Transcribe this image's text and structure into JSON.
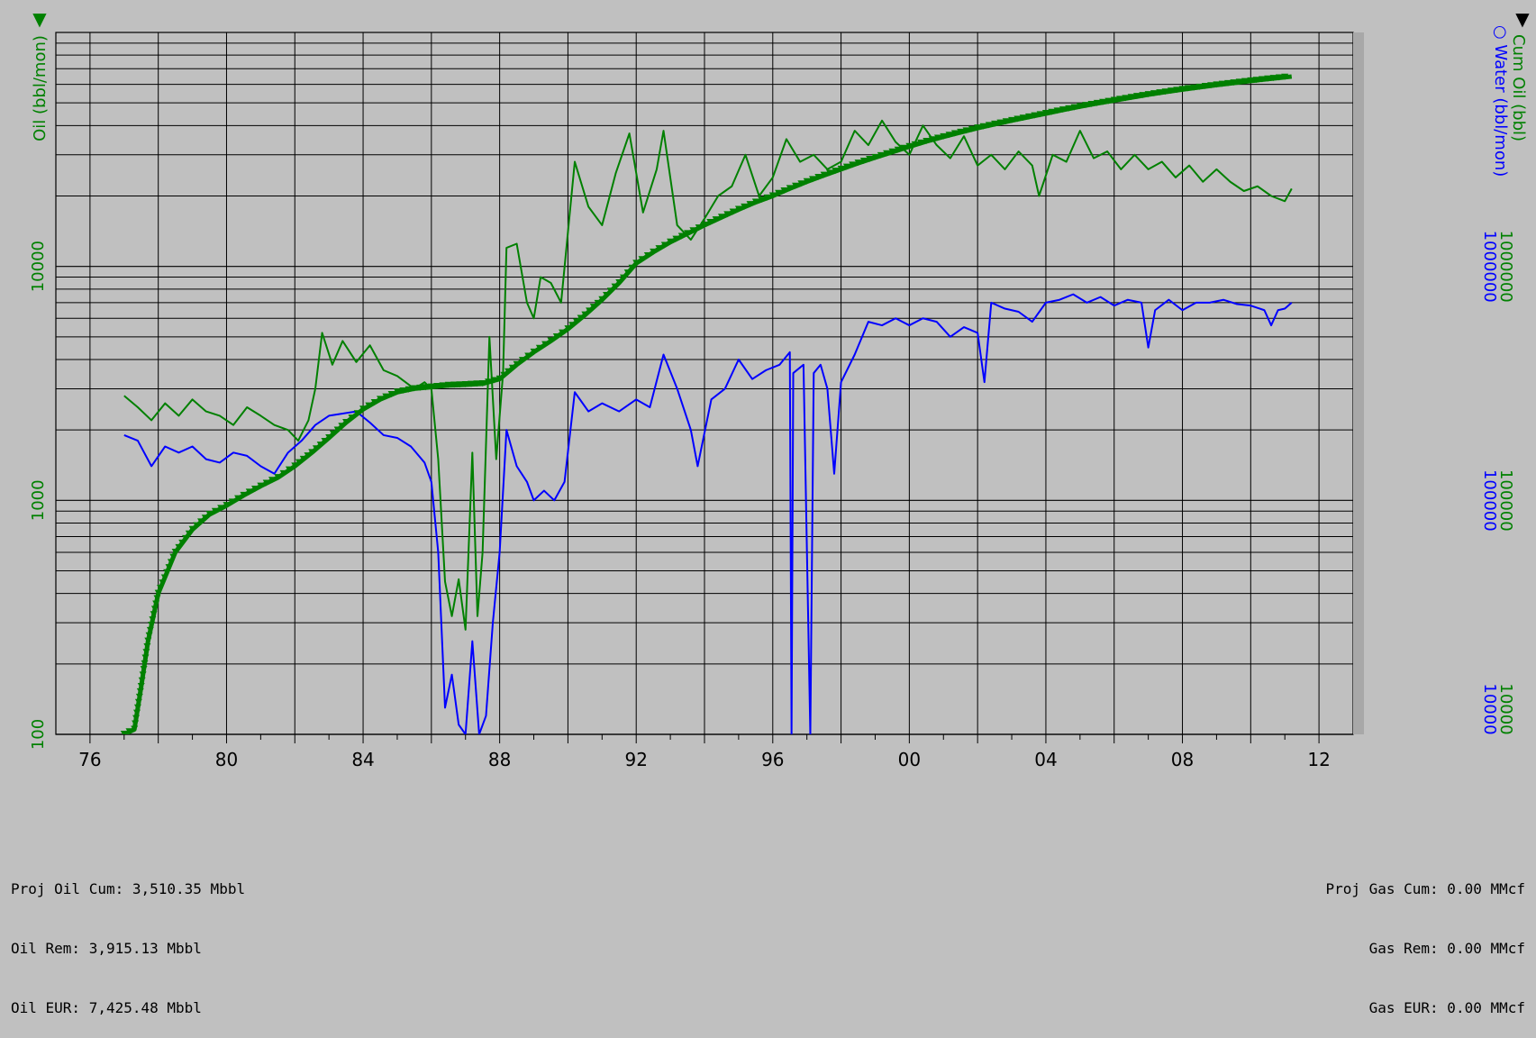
{
  "chart_data": {
    "type": "line",
    "y_scale": "log",
    "y_left": {
      "label": "Oil (bbl/mon)",
      "ticks": [
        "100",
        "1000",
        "10000"
      ],
      "range": [
        100,
        100000
      ],
      "color": "#008000"
    },
    "y_right": {
      "labels": [
        {
          "text": "Cum Oil (bbl)",
          "color": "#008000",
          "marker": "▼"
        },
        {
          "text": "Water (bbl/mon)",
          "color": "#0000ff",
          "marker": "○"
        }
      ],
      "ticks": [
        "10000",
        "100000",
        "1000000"
      ],
      "range": [
        10000,
        10000000
      ]
    },
    "x_axis": {
      "range_years": [
        1975,
        2013
      ],
      "tick_labels": [
        "76",
        "80",
        "84",
        "88",
        "92",
        "96",
        "00",
        "04",
        "08",
        "12"
      ],
      "tick_years": [
        1976,
        1980,
        1984,
        1988,
        1992,
        1996,
        2000,
        2004,
        2008,
        2012
      ]
    },
    "grid": true,
    "corner_markers": {
      "left": "▼",
      "right": "▼"
    },
    "series": [
      {
        "name": "Oil (bbl/mon)",
        "axis": "left",
        "color": "#008000",
        "points": [
          [
            1977.0,
            2800
          ],
          [
            1977.4,
            2500
          ],
          [
            1977.8,
            2200
          ],
          [
            1978.2,
            2600
          ],
          [
            1978.6,
            2300
          ],
          [
            1979.0,
            2700
          ],
          [
            1979.4,
            2400
          ],
          [
            1979.8,
            2300
          ],
          [
            1980.2,
            2100
          ],
          [
            1980.6,
            2500
          ],
          [
            1981.0,
            2300
          ],
          [
            1981.4,
            2100
          ],
          [
            1981.8,
            2000
          ],
          [
            1982.1,
            1800
          ],
          [
            1982.4,
            2200
          ],
          [
            1982.6,
            3000
          ],
          [
            1982.8,
            5200
          ],
          [
            1983.1,
            3800
          ],
          [
            1983.4,
            4800
          ],
          [
            1983.8,
            3900
          ],
          [
            1984.2,
            4600
          ],
          [
            1984.6,
            3600
          ],
          [
            1985.0,
            3400
          ],
          [
            1985.5,
            3000
          ],
          [
            1985.8,
            3200
          ],
          [
            1986.0,
            3000
          ],
          [
            1986.2,
            1500
          ],
          [
            1986.4,
            450
          ],
          [
            1986.6,
            320
          ],
          [
            1986.8,
            460
          ],
          [
            1987.0,
            280
          ],
          [
            1987.2,
            1600
          ],
          [
            1987.35,
            320
          ],
          [
            1987.5,
            600
          ],
          [
            1987.7,
            5000
          ],
          [
            1987.9,
            1500
          ],
          [
            1988.1,
            3500
          ],
          [
            1988.2,
            12000
          ],
          [
            1988.5,
            12500
          ],
          [
            1988.8,
            7000
          ],
          [
            1989.0,
            6000
          ],
          [
            1989.2,
            9000
          ],
          [
            1989.5,
            8500
          ],
          [
            1989.8,
            7000
          ],
          [
            1990.2,
            28000
          ],
          [
            1990.6,
            18000
          ],
          [
            1991.0,
            15000
          ],
          [
            1991.4,
            25000
          ],
          [
            1991.8,
            37000
          ],
          [
            1992.2,
            17000
          ],
          [
            1992.6,
            26000
          ],
          [
            1992.8,
            38000
          ],
          [
            1993.2,
            15000
          ],
          [
            1993.6,
            13000
          ],
          [
            1994.0,
            16000
          ],
          [
            1994.4,
            20000
          ],
          [
            1994.8,
            22000
          ],
          [
            1995.2,
            30000
          ],
          [
            1995.6,
            20000
          ],
          [
            1996.0,
            24000
          ],
          [
            1996.4,
            35000
          ],
          [
            1996.8,
            28000
          ],
          [
            1997.2,
            30000
          ],
          [
            1997.6,
            26000
          ],
          [
            1998.0,
            28000
          ],
          [
            1998.4,
            38000
          ],
          [
            1998.8,
            33000
          ],
          [
            1999.2,
            42000
          ],
          [
            1999.6,
            34000
          ],
          [
            2000.0,
            30000
          ],
          [
            2000.4,
            40000
          ],
          [
            2000.8,
            33000
          ],
          [
            2001.2,
            29000
          ],
          [
            2001.6,
            36000
          ],
          [
            2002.0,
            27000
          ],
          [
            2002.4,
            30000
          ],
          [
            2002.8,
            26000
          ],
          [
            2003.2,
            31000
          ],
          [
            2003.6,
            27000
          ],
          [
            2003.8,
            20000
          ],
          [
            2004.2,
            30000
          ],
          [
            2004.6,
            28000
          ],
          [
            2005.0,
            38000
          ],
          [
            2005.4,
            29000
          ],
          [
            2005.8,
            31000
          ],
          [
            2006.2,
            26000
          ],
          [
            2006.6,
            30000
          ],
          [
            2007.0,
            26000
          ],
          [
            2007.4,
            28000
          ],
          [
            2007.8,
            24000
          ],
          [
            2008.2,
            27000
          ],
          [
            2008.6,
            23000
          ],
          [
            2009.0,
            26000
          ],
          [
            2009.4,
            23000
          ],
          [
            2009.8,
            21000
          ],
          [
            2010.2,
            22000
          ],
          [
            2010.6,
            20000
          ],
          [
            2011.0,
            19000
          ],
          [
            2011.2,
            21500
          ]
        ]
      },
      {
        "name": "Water (bbl/mon)",
        "axis": "right",
        "color": "#0000ff",
        "points": [
          [
            1977.0,
            190000
          ],
          [
            1977.4,
            180000
          ],
          [
            1977.8,
            140000
          ],
          [
            1978.2,
            170000
          ],
          [
            1978.6,
            160000
          ],
          [
            1979.0,
            170000
          ],
          [
            1979.4,
            150000
          ],
          [
            1979.8,
            145000
          ],
          [
            1980.2,
            160000
          ],
          [
            1980.6,
            155000
          ],
          [
            1981.0,
            140000
          ],
          [
            1981.4,
            130000
          ],
          [
            1981.8,
            160000
          ],
          [
            1982.2,
            180000
          ],
          [
            1982.6,
            210000
          ],
          [
            1983.0,
            230000
          ],
          [
            1983.4,
            235000
          ],
          [
            1983.8,
            240000
          ],
          [
            1984.2,
            215000
          ],
          [
            1984.6,
            190000
          ],
          [
            1985.0,
            185000
          ],
          [
            1985.4,
            170000
          ],
          [
            1985.8,
            145000
          ],
          [
            1986.0,
            120000
          ],
          [
            1986.2,
            60000
          ],
          [
            1986.4,
            13000
          ],
          [
            1986.6,
            18000
          ],
          [
            1986.8,
            11000
          ],
          [
            1987.0,
            10000
          ],
          [
            1987.2,
            25000
          ],
          [
            1987.4,
            10000
          ],
          [
            1987.6,
            12000
          ],
          [
            1987.8,
            30000
          ],
          [
            1988.0,
            60000
          ],
          [
            1988.2,
            200000
          ],
          [
            1988.5,
            140000
          ],
          [
            1988.8,
            120000
          ],
          [
            1989.0,
            100000
          ],
          [
            1989.3,
            110000
          ],
          [
            1989.6,
            100000
          ],
          [
            1989.9,
            120000
          ],
          [
            1990.2,
            290000
          ],
          [
            1990.6,
            240000
          ],
          [
            1991.0,
            260000
          ],
          [
            1991.5,
            240000
          ],
          [
            1992.0,
            270000
          ],
          [
            1992.4,
            250000
          ],
          [
            1992.8,
            420000
          ],
          [
            1993.2,
            300000
          ],
          [
            1993.6,
            200000
          ],
          [
            1993.8,
            140000
          ],
          [
            1994.2,
            270000
          ],
          [
            1994.6,
            300000
          ],
          [
            1995.0,
            400000
          ],
          [
            1995.4,
            330000
          ],
          [
            1995.8,
            360000
          ],
          [
            1996.2,
            380000
          ],
          [
            1996.5,
            430000
          ],
          [
            1996.55,
            10000
          ],
          [
            1996.6,
            350000
          ],
          [
            1996.9,
            380000
          ],
          [
            1997.1,
            10000
          ],
          [
            1997.2,
            350000
          ],
          [
            1997.4,
            380000
          ],
          [
            1997.6,
            300000
          ],
          [
            1997.8,
            130000
          ],
          [
            1998.0,
            320000
          ],
          [
            1998.4,
            420000
          ],
          [
            1998.8,
            580000
          ],
          [
            1999.2,
            560000
          ],
          [
            1999.6,
            600000
          ],
          [
            2000.0,
            560000
          ],
          [
            2000.4,
            600000
          ],
          [
            2000.8,
            580000
          ],
          [
            2001.2,
            500000
          ],
          [
            2001.6,
            550000
          ],
          [
            2002.0,
            520000
          ],
          [
            2002.2,
            320000
          ],
          [
            2002.4,
            700000
          ],
          [
            2002.8,
            660000
          ],
          [
            2003.2,
            640000
          ],
          [
            2003.6,
            580000
          ],
          [
            2004.0,
            700000
          ],
          [
            2004.4,
            720000
          ],
          [
            2004.8,
            760000
          ],
          [
            2005.2,
            700000
          ],
          [
            2005.6,
            740000
          ],
          [
            2006.0,
            680000
          ],
          [
            2006.4,
            720000
          ],
          [
            2006.8,
            700000
          ],
          [
            2007.0,
            450000
          ],
          [
            2007.2,
            650000
          ],
          [
            2007.6,
            720000
          ],
          [
            2008.0,
            650000
          ],
          [
            2008.4,
            700000
          ],
          [
            2008.8,
            700000
          ],
          [
            2009.2,
            720000
          ],
          [
            2009.6,
            690000
          ],
          [
            2010.0,
            680000
          ],
          [
            2010.4,
            650000
          ],
          [
            2010.6,
            560000
          ],
          [
            2010.8,
            650000
          ],
          [
            2011.0,
            660000
          ],
          [
            2011.2,
            700000
          ]
        ]
      },
      {
        "name": "Cum Oil (bbl)",
        "axis": "right",
        "color": "#008000",
        "marker": "triangle-down",
        "points": [
          [
            1977.0,
            10000
          ],
          [
            1977.3,
            10500
          ],
          [
            1977.5,
            16000
          ],
          [
            1977.7,
            25000
          ],
          [
            1978.0,
            40000
          ],
          [
            1978.5,
            60000
          ],
          [
            1979.0,
            75000
          ],
          [
            1979.5,
            87000
          ],
          [
            1980.0,
            95000
          ],
          [
            1980.5,
            105000
          ],
          [
            1981.0,
            115000
          ],
          [
            1981.5,
            125000
          ],
          [
            1982.0,
            140000
          ],
          [
            1982.5,
            160000
          ],
          [
            1983.0,
            185000
          ],
          [
            1983.5,
            215000
          ],
          [
            1984.0,
            245000
          ],
          [
            1984.5,
            270000
          ],
          [
            1985.0,
            290000
          ],
          [
            1985.5,
            300000
          ],
          [
            1986.0,
            305000
          ],
          [
            1986.5,
            310000
          ],
          [
            1987.0,
            312000
          ],
          [
            1987.5,
            315000
          ],
          [
            1988.0,
            330000
          ],
          [
            1988.5,
            380000
          ],
          [
            1989.0,
            430000
          ],
          [
            1989.5,
            480000
          ],
          [
            1990.0,
            540000
          ],
          [
            1990.5,
            620000
          ],
          [
            1991.0,
            720000
          ],
          [
            1991.5,
            850000
          ],
          [
            1992.0,
            1030000
          ],
          [
            1992.5,
            1150000
          ],
          [
            1993.0,
            1270000
          ],
          [
            1993.5,
            1380000
          ],
          [
            1994.0,
            1500000
          ],
          [
            1994.5,
            1620000
          ],
          [
            1995.0,
            1750000
          ],
          [
            1995.5,
            1880000
          ],
          [
            1996.0,
            2000000
          ],
          [
            1996.5,
            2150000
          ],
          [
            1997.0,
            2300000
          ],
          [
            1997.5,
            2450000
          ],
          [
            1998.0,
            2600000
          ],
          [
            1998.5,
            2760000
          ],
          [
            1999.0,
            2920000
          ],
          [
            1999.5,
            3080000
          ],
          [
            2000.0,
            3250000
          ],
          [
            2000.5,
            3420000
          ],
          [
            2001.0,
            3580000
          ],
          [
            2001.5,
            3740000
          ],
          [
            2002.0,
            3900000
          ],
          [
            2002.5,
            4050000
          ],
          [
            2003.0,
            4200000
          ],
          [
            2003.5,
            4350000
          ],
          [
            2004.0,
            4500000
          ],
          [
            2004.5,
            4660000
          ],
          [
            2005.0,
            4820000
          ],
          [
            2005.5,
            4970000
          ],
          [
            2006.0,
            5120000
          ],
          [
            2006.5,
            5270000
          ],
          [
            2007.0,
            5420000
          ],
          [
            2007.5,
            5560000
          ],
          [
            2008.0,
            5700000
          ],
          [
            2008.5,
            5830000
          ],
          [
            2009.0,
            5960000
          ],
          [
            2009.5,
            6080000
          ],
          [
            2010.0,
            6200000
          ],
          [
            2010.5,
            6320000
          ],
          [
            2011.0,
            6430000
          ],
          [
            2011.2,
            6480000
          ]
        ]
      }
    ]
  },
  "stats_left": [
    "Proj Oil Cum: 3,510.35 Mbbl",
    "Oil Rem: 3,915.13 Mbbl",
    "Oil EUR: 7,425.48 Mbbl"
  ],
  "stats_right": [
    "Proj Gas Cum: 0.00 MMcf",
    "Gas Rem: 0.00 MMcf",
    "Gas EUR: 0.00 MMcf"
  ]
}
